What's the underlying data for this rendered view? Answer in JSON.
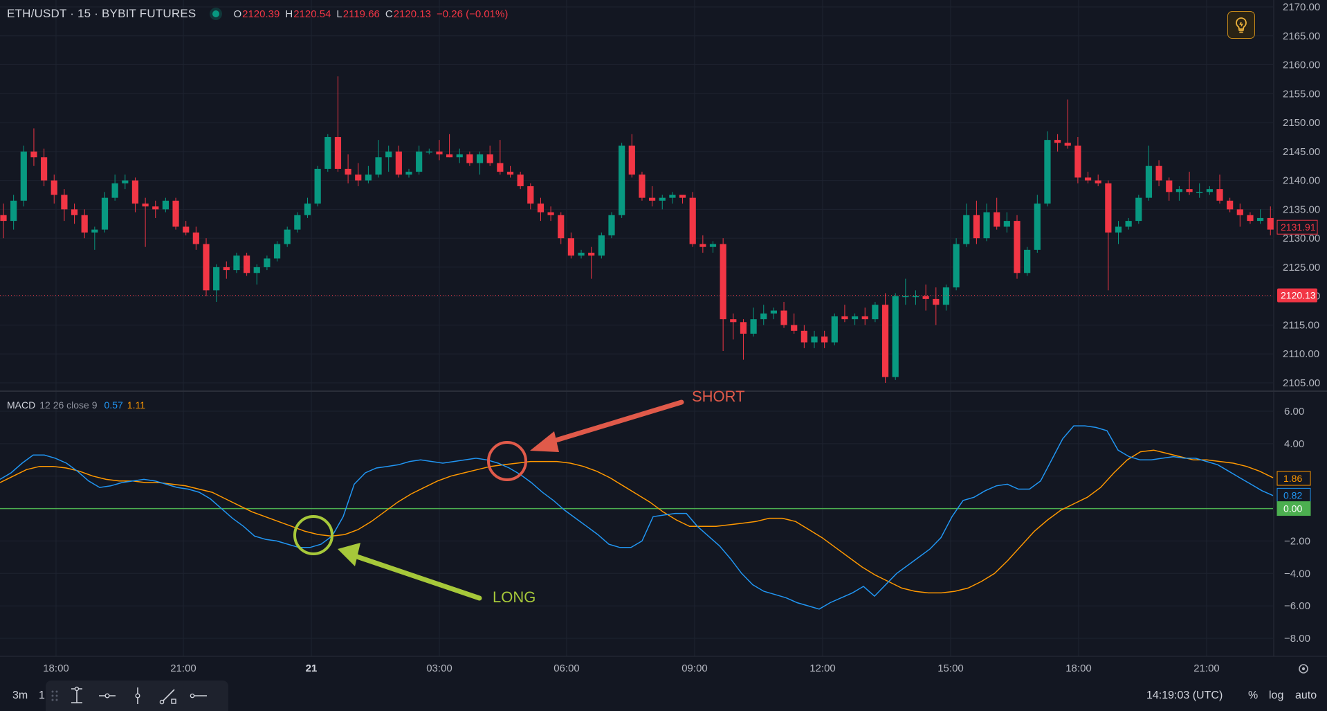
{
  "header": {
    "symbol": "ETH/USDT · 15 · BYBIT FUTURES",
    "open_label": "O",
    "open": "2120.39",
    "high_label": "H",
    "high": "2120.54",
    "low_label": "L",
    "low": "2119.66",
    "close_label": "C",
    "close": "2120.13",
    "change": "−0.26 (−0.01%)"
  },
  "indicator": {
    "name": "MACD",
    "params": "12 26 close 9",
    "macd_value": "0.57",
    "signal_value": "1.11"
  },
  "annotations": {
    "short_label": "SHORT",
    "long_label": "LONG"
  },
  "bottom_bar": {
    "timeframe": "3m",
    "timeframe2": "1",
    "clock": "14:19:03 (UTC)",
    "percent_label": "%",
    "log_label": "log",
    "auto_label": "auto"
  },
  "colors": {
    "background": "#131722",
    "up": "#089981",
    "down": "#f23645",
    "macd_line": "#2196f3",
    "signal_line": "#ff9800",
    "zero_line": "#4caf50",
    "short_annotation": "#e05a4a",
    "long_annotation": "#a6c83a"
  },
  "chart_data": [
    {
      "type": "candlestick",
      "title": "ETH/USDT · 15 · BYBIT FUTURES",
      "y_ticks": [
        "2170.00",
        "2165.00",
        "2160.00",
        "2155.00",
        "2150.00",
        "2145.00",
        "2140.00",
        "2135.00",
        "2130.00",
        "2125.00",
        "2120.00",
        "2115.00",
        "2110.00",
        "2105.00"
      ],
      "ylim": [
        2104,
        2171
      ],
      "x_ticks": [
        "18:00",
        "21:00",
        "21",
        "03:00",
        "06:00",
        "09:00",
        "12:00",
        "15:00",
        "18:00",
        "21:00"
      ],
      "last_price": "2131.91",
      "current_price": "2120.13",
      "candles_ohlc": [
        [
          2134.0,
          2136.0,
          2130.0,
          2133.0
        ],
        [
          2133.0,
          2137.5,
          2131.5,
          2136.5
        ],
        [
          2136.5,
          2146.0,
          2135.5,
          2145.0
        ],
        [
          2145.0,
          2149.0,
          2142.5,
          2144.0
        ],
        [
          2144.0,
          2145.5,
          2139.0,
          2140.0
        ],
        [
          2140.0,
          2141.0,
          2136.0,
          2137.5
        ],
        [
          2137.5,
          2138.5,
          2133.0,
          2135.0
        ],
        [
          2135.0,
          2136.0,
          2132.5,
          2134.0
        ],
        [
          2134.0,
          2135.0,
          2130.0,
          2131.0
        ],
        [
          2131.0,
          2132.0,
          2128.0,
          2131.5
        ],
        [
          2131.5,
          2138.0,
          2131.0,
          2137.0
        ],
        [
          2137.0,
          2141.0,
          2136.5,
          2139.5
        ],
        [
          2139.5,
          2141.0,
          2138.5,
          2140.0
        ],
        [
          2140.0,
          2140.5,
          2134.5,
          2136.0
        ],
        [
          2136.0,
          2137.0,
          2128.5,
          2135.5
        ],
        [
          2135.5,
          2136.5,
          2133.5,
          2135.0
        ],
        [
          2135.0,
          2137.0,
          2134.5,
          2136.5
        ],
        [
          2136.5,
          2137.0,
          2131.5,
          2132.0
        ],
        [
          2132.0,
          2133.0,
          2130.5,
          2131.0
        ],
        [
          2131.0,
          2132.0,
          2128.0,
          2129.0
        ],
        [
          2129.0,
          2130.0,
          2120.0,
          2121.0
        ],
        [
          2121.0,
          2125.5,
          2119.0,
          2125.0
        ],
        [
          2125.0,
          2126.0,
          2123.0,
          2124.5
        ],
        [
          2124.5,
          2127.5,
          2124.0,
          2127.0
        ],
        [
          2127.0,
          2127.5,
          2123.5,
          2124.0
        ],
        [
          2124.0,
          2125.5,
          2122.0,
          2125.0
        ],
        [
          2125.0,
          2127.0,
          2124.5,
          2126.5
        ],
        [
          2126.5,
          2129.5,
          2126.0,
          2129.0
        ],
        [
          2129.0,
          2132.0,
          2128.5,
          2131.5
        ],
        [
          2131.5,
          2134.5,
          2131.0,
          2134.0
        ],
        [
          2134.0,
          2137.0,
          2133.5,
          2136.0
        ],
        [
          2136.0,
          2142.5,
          2135.5,
          2142.0
        ],
        [
          2142.0,
          2148.0,
          2141.5,
          2147.5
        ],
        [
          2147.5,
          2158.0,
          2141.5,
          2142.0
        ],
        [
          2142.0,
          2144.5,
          2139.5,
          2141.0
        ],
        [
          2141.0,
          2143.0,
          2139.0,
          2140.0
        ],
        [
          2140.0,
          2142.5,
          2139.5,
          2141.0
        ],
        [
          2141.0,
          2147.0,
          2140.5,
          2144.0
        ],
        [
          2144.0,
          2146.0,
          2141.5,
          2145.0
        ],
        [
          2145.0,
          2146.0,
          2140.5,
          2141.0
        ],
        [
          2141.0,
          2142.0,
          2140.5,
          2141.5
        ],
        [
          2141.5,
          2146.0,
          2141.0,
          2145.0
        ],
        [
          2145.0,
          2145.5,
          2144.5,
          2145.0
        ],
        [
          2145.0,
          2147.0,
          2143.5,
          2144.5
        ],
        [
          2144.5,
          2148.0,
          2144.0,
          2144.0
        ],
        [
          2144.0,
          2145.5,
          2143.0,
          2144.5
        ],
        [
          2144.5,
          2145.0,
          2142.5,
          2143.0
        ],
        [
          2143.0,
          2145.0,
          2141.0,
          2144.5
        ],
        [
          2144.5,
          2146.0,
          2142.5,
          2143.0
        ],
        [
          2143.0,
          2147.0,
          2141.0,
          2141.5
        ],
        [
          2141.5,
          2142.5,
          2140.5,
          2141.0
        ],
        [
          2141.0,
          2141.5,
          2138.5,
          2139.0
        ],
        [
          2139.0,
          2139.5,
          2135.0,
          2136.0
        ],
        [
          2136.0,
          2137.0,
          2133.0,
          2134.5
        ],
        [
          2134.5,
          2135.5,
          2133.0,
          2134.0
        ],
        [
          2134.0,
          2134.5,
          2129.0,
          2130.0
        ],
        [
          2130.0,
          2131.0,
          2126.5,
          2127.0
        ],
        [
          2127.0,
          2128.0,
          2126.5,
          2127.5
        ],
        [
          2127.5,
          2128.5,
          2123.0,
          2127.0
        ],
        [
          2127.0,
          2131.0,
          2126.5,
          2130.5
        ],
        [
          2130.5,
          2134.5,
          2130.0,
          2134.0
        ],
        [
          2134.0,
          2146.5,
          2133.5,
          2146.0
        ],
        [
          2146.0,
          2148.0,
          2140.5,
          2141.0
        ],
        [
          2141.0,
          2141.5,
          2136.5,
          2137.0
        ],
        [
          2137.0,
          2139.0,
          2135.5,
          2136.5
        ],
        [
          2136.5,
          2137.5,
          2135.0,
          2137.0
        ],
        [
          2137.0,
          2138.0,
          2136.0,
          2137.5
        ],
        [
          2137.5,
          2137.5,
          2136.0,
          2137.0
        ],
        [
          2137.0,
          2138.0,
          2128.5,
          2129.0
        ],
        [
          2129.0,
          2130.5,
          2127.5,
          2128.5
        ],
        [
          2128.5,
          2129.5,
          2127.5,
          2129.0
        ],
        [
          2129.0,
          2130.0,
          2110.5,
          2116.0
        ],
        [
          2116.0,
          2117.0,
          2112.5,
          2115.5
        ],
        [
          2115.5,
          2116.0,
          2109.0,
          2113.5
        ],
        [
          2113.5,
          2118.0,
          2113.0,
          2116.0
        ],
        [
          2116.0,
          2118.5,
          2115.0,
          2117.0
        ],
        [
          2117.0,
          2118.0,
          2116.0,
          2117.5
        ],
        [
          2117.5,
          2119.0,
          2114.5,
          2115.0
        ],
        [
          2115.0,
          2117.0,
          2113.5,
          2114.0
        ],
        [
          2114.0,
          2115.0,
          2111.0,
          2112.0
        ],
        [
          2112.0,
          2114.0,
          2111.0,
          2113.0
        ],
        [
          2113.0,
          2114.0,
          2111.0,
          2112.0
        ],
        [
          2112.0,
          2117.0,
          2111.5,
          2116.5
        ],
        [
          2116.5,
          2118.5,
          2115.5,
          2116.0
        ],
        [
          2116.0,
          2117.0,
          2115.0,
          2116.5
        ],
        [
          2116.5,
          2118.0,
          2115.0,
          2116.0
        ],
        [
          2116.0,
          2119.0,
          2115.5,
          2118.5
        ],
        [
          2118.5,
          2120.5,
          2105.0,
          2106.0
        ],
        [
          2106.0,
          2120.5,
          2105.5,
          2120.0
        ],
        [
          2120.0,
          2123.0,
          2118.5,
          2120.0
        ],
        [
          2120.0,
          2121.0,
          2118.5,
          2120.0
        ],
        [
          2120.0,
          2122.0,
          2117.5,
          2119.5
        ],
        [
          2119.5,
          2121.5,
          2115.0,
          2118.5
        ],
        [
          2118.5,
          2122.0,
          2117.5,
          2121.5
        ],
        [
          2121.5,
          2130.0,
          2121.0,
          2129.0
        ],
        [
          2129.0,
          2136.0,
          2128.5,
          2134.0
        ],
        [
          2134.0,
          2136.5,
          2129.0,
          2130.0
        ],
        [
          2130.0,
          2136.0,
          2129.5,
          2134.5
        ],
        [
          2134.5,
          2137.0,
          2131.5,
          2132.0
        ],
        [
          2132.0,
          2134.5,
          2131.0,
          2133.0
        ],
        [
          2133.0,
          2134.0,
          2123.0,
          2124.0
        ],
        [
          2124.0,
          2128.5,
          2123.5,
          2128.0
        ],
        [
          2128.0,
          2137.5,
          2127.5,
          2136.0
        ],
        [
          2136.0,
          2148.5,
          2135.5,
          2147.0
        ],
        [
          2147.0,
          2148.0,
          2145.0,
          2146.5
        ],
        [
          2146.5,
          2154.0,
          2145.5,
          2146.0
        ],
        [
          2146.0,
          2147.5,
          2139.5,
          2140.5
        ],
        [
          2140.5,
          2141.5,
          2139.5,
          2140.0
        ],
        [
          2140.0,
          2141.0,
          2139.0,
          2139.5
        ],
        [
          2139.5,
          2140.0,
          2121.0,
          2131.0
        ],
        [
          2131.0,
          2133.0,
          2129.0,
          2132.0
        ],
        [
          2132.0,
          2133.5,
          2131.5,
          2133.0
        ],
        [
          2133.0,
          2137.5,
          2132.5,
          2137.0
        ],
        [
          2137.0,
          2146.0,
          2136.5,
          2142.5
        ],
        [
          2142.5,
          2143.5,
          2139.0,
          2140.0
        ],
        [
          2140.0,
          2140.5,
          2136.5,
          2138.0
        ],
        [
          2138.0,
          2139.0,
          2136.5,
          2138.5
        ],
        [
          2138.5,
          2141.5,
          2137.5,
          2138.0
        ],
        [
          2138.0,
          2139.5,
          2137.0,
          2138.0
        ],
        [
          2138.0,
          2139.0,
          2137.5,
          2138.5
        ],
        [
          2138.5,
          2141.0,
          2136.0,
          2136.5
        ],
        [
          2136.5,
          2137.0,
          2134.5,
          2135.0
        ],
        [
          2135.0,
          2136.0,
          2132.0,
          2134.0
        ],
        [
          2134.0,
          2134.5,
          2132.5,
          2133.0
        ],
        [
          2133.0,
          2135.0,
          2132.5,
          2133.5
        ],
        [
          2133.5,
          2135.5,
          2130.5,
          2131.5
        ]
      ]
    },
    {
      "type": "line",
      "title": "MACD 12 26 close 9",
      "y_ticks": [
        "6.00",
        "4.00",
        "2.00",
        "0.00",
        "−2.00",
        "−4.00",
        "−6.00",
        "−8.00"
      ],
      "ylim": [
        -8.6,
        6.6
      ],
      "series": [
        {
          "name": "MACD",
          "last": "0.82",
          "values": [
            1.8,
            2.2,
            2.8,
            3.3,
            3.3,
            3.1,
            2.8,
            2.3,
            1.7,
            1.3,
            1.4,
            1.6,
            1.7,
            1.8,
            1.7,
            1.5,
            1.3,
            1.2,
            1.0,
            0.6,
            0.0,
            -0.6,
            -1.1,
            -1.7,
            -1.9,
            -2.0,
            -2.2,
            -2.4,
            -2.4,
            -2.2,
            -1.7,
            -0.5,
            1.5,
            2.2,
            2.5,
            2.6,
            2.7,
            2.9,
            3.0,
            2.9,
            2.8,
            2.9,
            3.0,
            3.1,
            3.0,
            2.8,
            2.5,
            2.1,
            1.6,
            1.0,
            0.5,
            -0.1,
            -0.6,
            -1.1,
            -1.6,
            -2.2,
            -2.4,
            -2.4,
            -2.0,
            -0.5,
            -0.4,
            -0.3,
            -0.3,
            -1.1,
            -1.7,
            -2.3,
            -3.1,
            -4.0,
            -4.7,
            -5.1,
            -5.3,
            -5.5,
            -5.8,
            -6.0,
            -6.2,
            -5.8,
            -5.5,
            -5.2,
            -4.8,
            -5.4,
            -4.7,
            -4.0,
            -3.5,
            -3.0,
            -2.5,
            -1.8,
            -0.5,
            0.5,
            0.7,
            1.1,
            1.4,
            1.5,
            1.2,
            1.2,
            1.7,
            3.0,
            4.3,
            5.1,
            5.1,
            5.0,
            4.8,
            3.6,
            3.2,
            3.0,
            3.0,
            3.1,
            3.2,
            3.1,
            3.1,
            2.9,
            2.7,
            2.3,
            1.9,
            1.5,
            1.1,
            0.8
          ]
        },
        {
          "name": "Signal",
          "last": "1.86",
          "values": [
            1.6,
            2.0,
            2.4,
            2.6,
            2.6,
            2.5,
            2.3,
            2.0,
            1.8,
            1.7,
            1.7,
            1.6,
            1.6,
            1.5,
            1.4,
            1.2,
            1.0,
            0.6,
            0.2,
            -0.2,
            -0.5,
            -0.8,
            -1.1,
            -1.4,
            -1.6,
            -1.7,
            -1.6,
            -1.3,
            -0.8,
            -0.2,
            0.4,
            0.9,
            1.3,
            1.7,
            2.0,
            2.2,
            2.4,
            2.6,
            2.7,
            2.8,
            2.9,
            2.9,
            2.9,
            2.8,
            2.6,
            2.3,
            1.9,
            1.4,
            0.9,
            0.4,
            -0.2,
            -0.7,
            -1.1,
            -1.1,
            -1.1,
            -1.0,
            -0.9,
            -0.8,
            -0.6,
            -0.6,
            -0.8,
            -1.3,
            -1.8,
            -2.4,
            -3.0,
            -3.6,
            -4.1,
            -4.5,
            -4.9,
            -5.1,
            -5.2,
            -5.2,
            -5.1,
            -4.9,
            -4.5,
            -4.0,
            -3.2,
            -2.3,
            -1.4,
            -0.7,
            -0.1,
            0.3,
            0.7,
            1.3,
            2.2,
            3.0,
            3.5,
            3.6,
            3.4,
            3.2,
            3.0,
            3.0,
            2.9,
            2.8,
            2.6,
            2.3,
            1.9
          ]
        },
        {
          "name": "Zero",
          "last": "0.00"
        }
      ]
    }
  ]
}
